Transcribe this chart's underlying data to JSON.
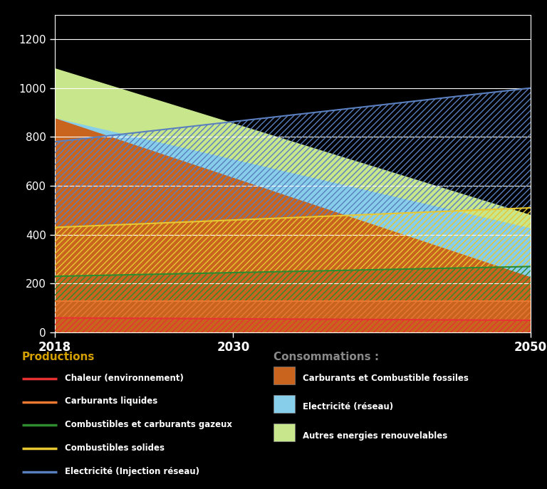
{
  "years": [
    2018,
    2050
  ],
  "years_ticks": [
    2018,
    2030,
    2050
  ],
  "consumption": {
    "fossils": [
      880,
      230
    ],
    "electricity_reseau": [
      0,
      200
    ],
    "renewables": [
      200,
      50
    ]
  },
  "consumption_colors": {
    "fossils": "#c8641e",
    "electricity_reseau": "#87ceeb",
    "renewables": "#c8e68c"
  },
  "production_lines": {
    "chaleur": [
      60,
      50
    ],
    "carburants_liquides": [
      70,
      80
    ],
    "combustibles_gazeux": [
      100,
      140
    ],
    "combustibles_solides": [
      200,
      240
    ],
    "electricite_injection": [
      350,
      490
    ]
  },
  "production_colors": {
    "chaleur": "#e63232",
    "carburants_liquides": "#e87832",
    "combustibles_gazeux": "#2e8b2e",
    "combustibles_solides": "#e8c832",
    "electricite_injection": "#5a7fbe"
  },
  "ylim": [
    0,
    1300
  ],
  "yticks": [
    0,
    200,
    400,
    600,
    800,
    1000,
    1200
  ],
  "bg_color": "#000000",
  "plot_bg_color": "#000000",
  "legend_productions_title": "Productions",
  "legend_conso_title": "Consommations :",
  "legend_items_prod": [
    [
      "Chaleur (environnement)",
      "#e63232"
    ],
    [
      "Carburants liquides",
      "#e87832"
    ],
    [
      "Combustibles et carburants gazeux",
      "#2e8b2e"
    ],
    [
      "Combustibles solides",
      "#e8c832"
    ],
    [
      "Electricité (Injection réseau)",
      "#5a7fbe"
    ]
  ],
  "legend_items_conso": [
    [
      "Carburants et Combustible fossiles",
      "#c8641e"
    ],
    [
      "Electricité (réseau)",
      "#87ceeb"
    ],
    [
      "Autres energies renouvelables",
      "#c8e68c"
    ]
  ]
}
